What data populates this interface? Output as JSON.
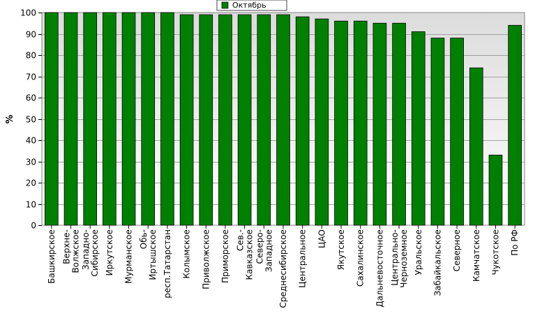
{
  "chart_data": {
    "type": "bar",
    "ylabel": "%",
    "ylim": [
      0,
      100
    ],
    "yticks": [
      0,
      10,
      20,
      30,
      40,
      50,
      60,
      70,
      80,
      90,
      100
    ],
    "grid": true,
    "legend_position": "top-center",
    "categories": [
      "Башкирское",
      "Верхне-Волжское",
      "Западно-Сибирское",
      "Иркутское",
      "Мурманское",
      "Обь-Иртышское",
      "респ.Татарстан",
      "Колымское",
      "Приволжское",
      "Приморское",
      "Сев.-Кавказское",
      "Северо-Западное",
      "Среднесибирское",
      "Центральное",
      "ЦАО",
      "Якутское",
      "Сахалинское",
      "Дальневосточное",
      "Центрально-Черноземное",
      "Уральское",
      "Забайкальское",
      "Северное",
      "Камчатское",
      "Чукотское",
      "По РФ"
    ],
    "series": [
      {
        "name": "Октябрь",
        "color": "#008000",
        "values": [
          100,
          100,
          100,
          100,
          100,
          100,
          100,
          99,
          99,
          99,
          99,
          99,
          99,
          98,
          97,
          96,
          96,
          95,
          95,
          91,
          88,
          88,
          74,
          33,
          94
        ]
      }
    ]
  }
}
